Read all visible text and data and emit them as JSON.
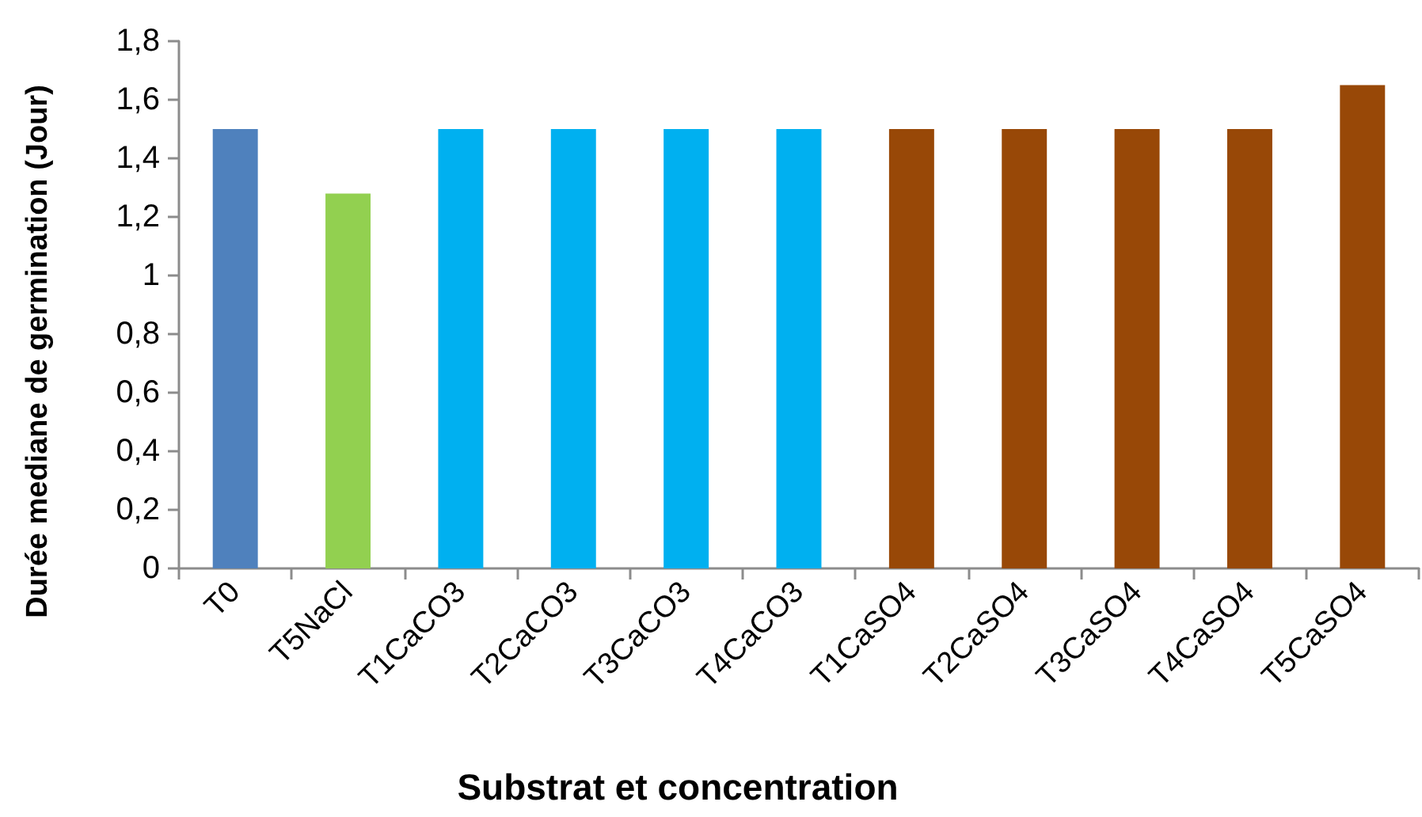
{
  "chart_data": {
    "type": "bar",
    "xlabel": "Substrat et concentration",
    "ylabel": "Durée mediane de germination (Jour)",
    "categories": [
      "T0",
      "T5NaCl",
      "T1CaCO3",
      "T2CaCO3",
      "T3CaCO3",
      "T4CaCO3",
      "T1CaSO4",
      "T2CaSO4",
      "T3CaSO4",
      "T4CaSO4",
      "T5CaSO4"
    ],
    "values": [
      1.5,
      1.28,
      1.5,
      1.5,
      1.5,
      1.5,
      1.5,
      1.5,
      1.5,
      1.5,
      1.65
    ],
    "colors": [
      "#4f81bd",
      "#92d050",
      "#00b0f0",
      "#00b0f0",
      "#00b0f0",
      "#00b0f0",
      "#984807",
      "#984807",
      "#984807",
      "#984807",
      "#984807"
    ],
    "ylim": [
      0,
      1.8
    ],
    "yticks": [
      0,
      {
        "value": 0.2,
        "label": "0,2"
      },
      {
        "value": 0.4,
        "label": "0,4"
      },
      {
        "value": 0.6,
        "label": "0,6"
      },
      {
        "value": 0.8,
        "label": "0,8"
      },
      1,
      {
        "value": 1.2,
        "label": "1,2"
      },
      {
        "value": 1.4,
        "label": "1,4"
      },
      {
        "value": 1.6,
        "label": "1,6"
      },
      {
        "value": 1.8,
        "label": "1,8"
      }
    ],
    "grid": false
  }
}
